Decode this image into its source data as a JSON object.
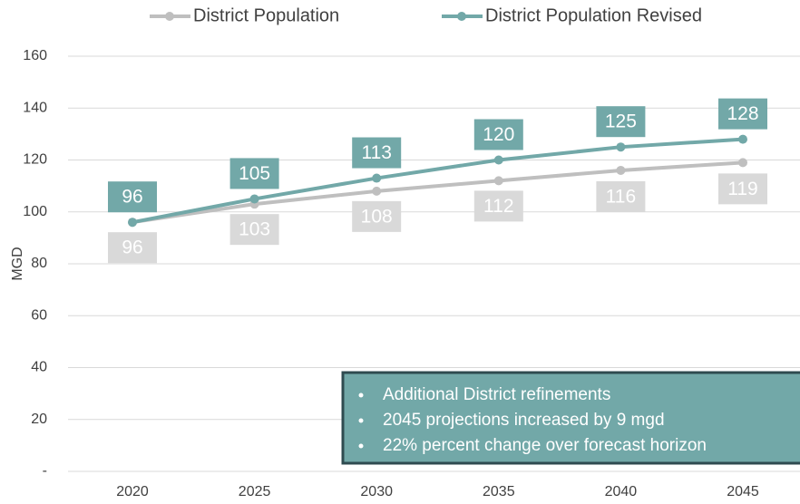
{
  "chart_data": {
    "type": "line",
    "y_label": "MGD",
    "categories": [
      "2020",
      "2025",
      "2030",
      "2035",
      "2040",
      "2045"
    ],
    "series": [
      {
        "name": "District Population",
        "color": "#bfbfbf",
        "label_color": "#d9d9d9",
        "values": [
          96,
          103,
          108,
          112,
          116,
          119
        ]
      },
      {
        "name": "District Population Revised",
        "color": "#72a8a8",
        "label_color": "#72a8a8",
        "values": [
          96,
          105,
          113,
          120,
          125,
          128
        ]
      }
    ],
    "ylim": [
      0,
      160
    ],
    "yticks": [
      {
        "value": 0,
        "label": "-"
      },
      20,
      40,
      60,
      80,
      100,
      120,
      140,
      160
    ],
    "grid": true,
    "legend": "top",
    "annotation": [
      "Additional District refinements",
      "2045 projections increased by 9 mgd",
      "22% percent change over forecast horizon"
    ]
  }
}
